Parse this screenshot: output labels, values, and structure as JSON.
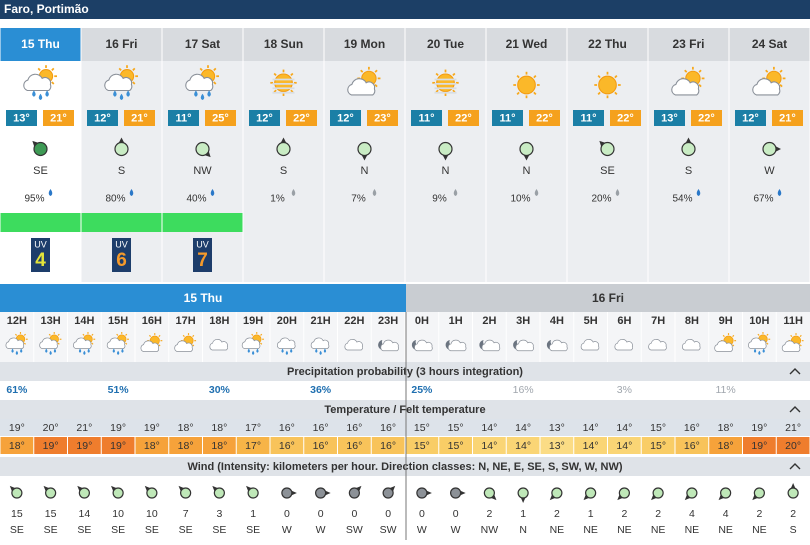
{
  "header": {
    "location": "Faro, Portimão"
  },
  "uv_label": "UV",
  "days": [
    {
      "label": "15 Thu",
      "min": "13°",
      "max": "21°",
      "wind_dir": "SE",
      "precip": "95%",
      "uv": "4"
    },
    {
      "label": "16 Fri",
      "min": "12°",
      "max": "21°",
      "wind_dir": "S",
      "precip": "80%",
      "uv": "6"
    },
    {
      "label": "17 Sat",
      "min": "11°",
      "max": "25°",
      "wind_dir": "NW",
      "precip": "40%",
      "uv": "7"
    },
    {
      "label": "18 Sun",
      "min": "12°",
      "max": "22°",
      "wind_dir": "S",
      "precip": "1%"
    },
    {
      "label": "19 Mon",
      "min": "12°",
      "max": "23°",
      "wind_dir": "N",
      "precip": "7%"
    },
    {
      "label": "20 Tue",
      "min": "11°",
      "max": "22°",
      "wind_dir": "N",
      "precip": "9%"
    },
    {
      "label": "21 Wed",
      "min": "11°",
      "max": "22°",
      "wind_dir": "N",
      "precip": "10%"
    },
    {
      "label": "22 Thu",
      "min": "11°",
      "max": "22°",
      "wind_dir": "SE",
      "precip": "20%"
    },
    {
      "label": "23 Fri",
      "min": "13°",
      "max": "22°",
      "wind_dir": "S",
      "precip": "54%"
    },
    {
      "label": "24 Sat",
      "min": "12°",
      "max": "21°",
      "wind_dir": "W",
      "precip": "67%"
    }
  ],
  "hourly": {
    "days": [
      "15 Thu",
      "16 Fri"
    ],
    "hours": [
      "12H",
      "13H",
      "14H",
      "15H",
      "16H",
      "17H",
      "18H",
      "19H",
      "20H",
      "21H",
      "22H",
      "23H",
      "0H",
      "1H",
      "2H",
      "3H",
      "4H",
      "5H",
      "6H",
      "7H",
      "8H",
      "9H",
      "10H",
      "11H"
    ],
    "precip_title": "Precipitation probability (3 hours integration)",
    "precip": [
      "61%",
      null,
      null,
      "51%",
      null,
      null,
      "30%",
      null,
      null,
      "36%",
      null,
      null,
      "25%",
      null,
      null,
      "16%",
      null,
      null,
      "3%",
      null,
      null,
      "11%",
      null,
      null
    ],
    "temp_title": "Temperature / Felt temperature",
    "temp": [
      "19°",
      "20°",
      "21°",
      "19°",
      "19°",
      "18°",
      "18°",
      "17°",
      "16°",
      "16°",
      "16°",
      "16°",
      "15°",
      "15°",
      "14°",
      "14°",
      "13°",
      "14°",
      "14°",
      "15°",
      "16°",
      "18°",
      "19°",
      "21°"
    ],
    "felt": [
      "18°",
      "19°",
      "19°",
      "19°",
      "18°",
      "18°",
      "18°",
      "17°",
      "16°",
      "16°",
      "16°",
      "16°",
      "15°",
      "15°",
      "14°",
      "14°",
      "13°",
      "14°",
      "14°",
      "15°",
      "16°",
      "18°",
      "19°",
      "20°"
    ],
    "wind_title": "Wind (Intensity: kilometers per hour. Direction classes: N, NE, E, SE, S, SW, W, NW)",
    "wind_speed": [
      15,
      15,
      14,
      10,
      10,
      7,
      3,
      1,
      0,
      0,
      0,
      0,
      0,
      0,
      2,
      1,
      2,
      1,
      2,
      2,
      4,
      4,
      2,
      2
    ],
    "wind_dir": [
      "SE",
      "SE",
      "SE",
      "SE",
      "SE",
      "SE",
      "SE",
      "SE",
      "W",
      "W",
      "SW",
      "SW",
      "W",
      "W",
      "NW",
      "N",
      "NE",
      "NE",
      "NE",
      "NE",
      "NE",
      "NE",
      "NE",
      "S"
    ]
  }
}
